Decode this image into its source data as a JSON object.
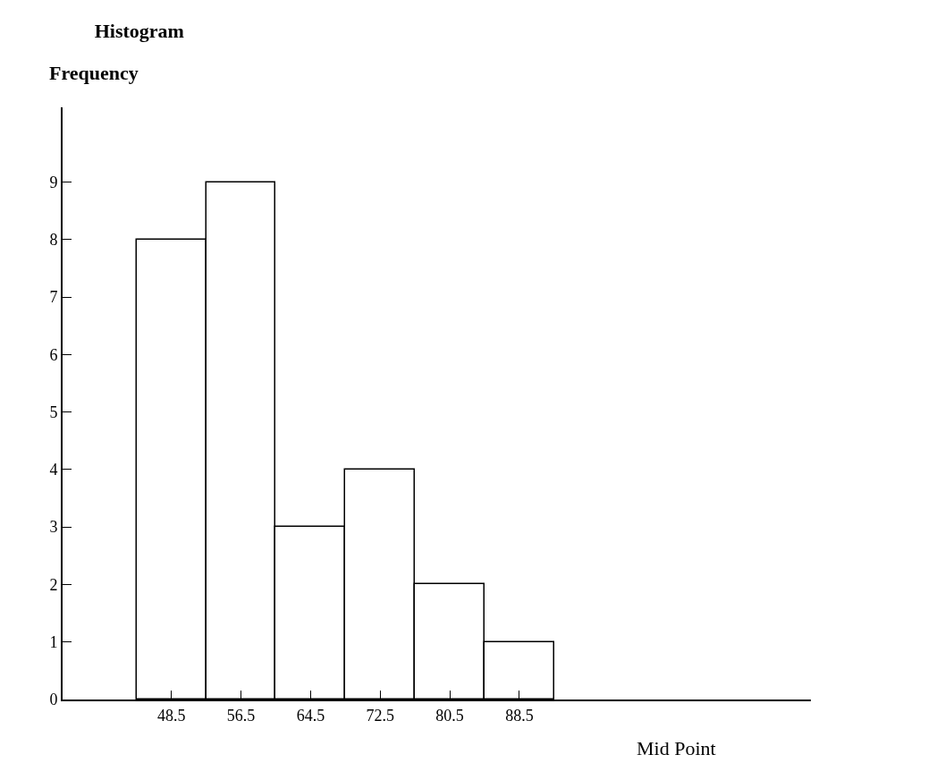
{
  "chart_data": {
    "type": "histogram",
    "title": "Histogram",
    "ylabel": "Frequency",
    "xlabel": "Mid Point",
    "bins": [
      44.5,
      52.5,
      60.5,
      68.5,
      76.5,
      84.5,
      92.5
    ],
    "values": [
      8,
      9,
      3,
      4,
      2,
      1
    ],
    "color": "#ffffff",
    "xlim": [
      36,
      122
    ],
    "ylim": [
      0,
      10.3
    ],
    "xticks": [
      48.5,
      56.5,
      64.5,
      72.5,
      80.5,
      88.5
    ],
    "yticks": [
      0,
      1,
      2,
      3,
      4,
      5,
      6,
      7,
      8,
      9
    ]
  }
}
